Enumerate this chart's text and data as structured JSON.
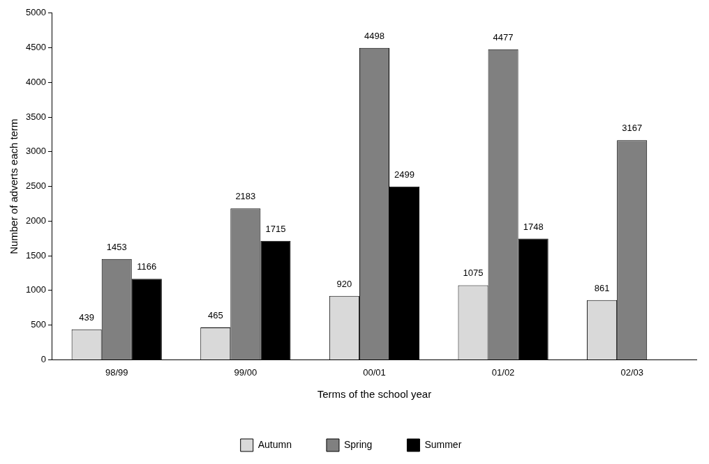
{
  "chart_data": {
    "type": "bar",
    "xlabel": "Terms of the school year",
    "ylabel": "Number of adverts each term",
    "categories": [
      "98/99",
      "99/00",
      "00/01",
      "01/02",
      "02/03"
    ],
    "series": [
      {
        "name": "Autumn",
        "color": "#d9d9d9",
        "values": [
          439,
          465,
          920,
          1075,
          861
        ]
      },
      {
        "name": "Spring",
        "color": "#808080",
        "values": [
          1453,
          2183,
          4498,
          4477,
          3167
        ]
      },
      {
        "name": "Summer",
        "color": "#000000",
        "values": [
          1166,
          1715,
          2499,
          1748,
          null
        ]
      }
    ],
    "ylim": [
      0,
      5000
    ],
    "yticks": [
      0,
      500,
      1000,
      1500,
      2000,
      2500,
      3000,
      3500,
      4000,
      4500,
      5000
    ],
    "grid": false,
    "legend": "bottom",
    "data_labels": true
  }
}
